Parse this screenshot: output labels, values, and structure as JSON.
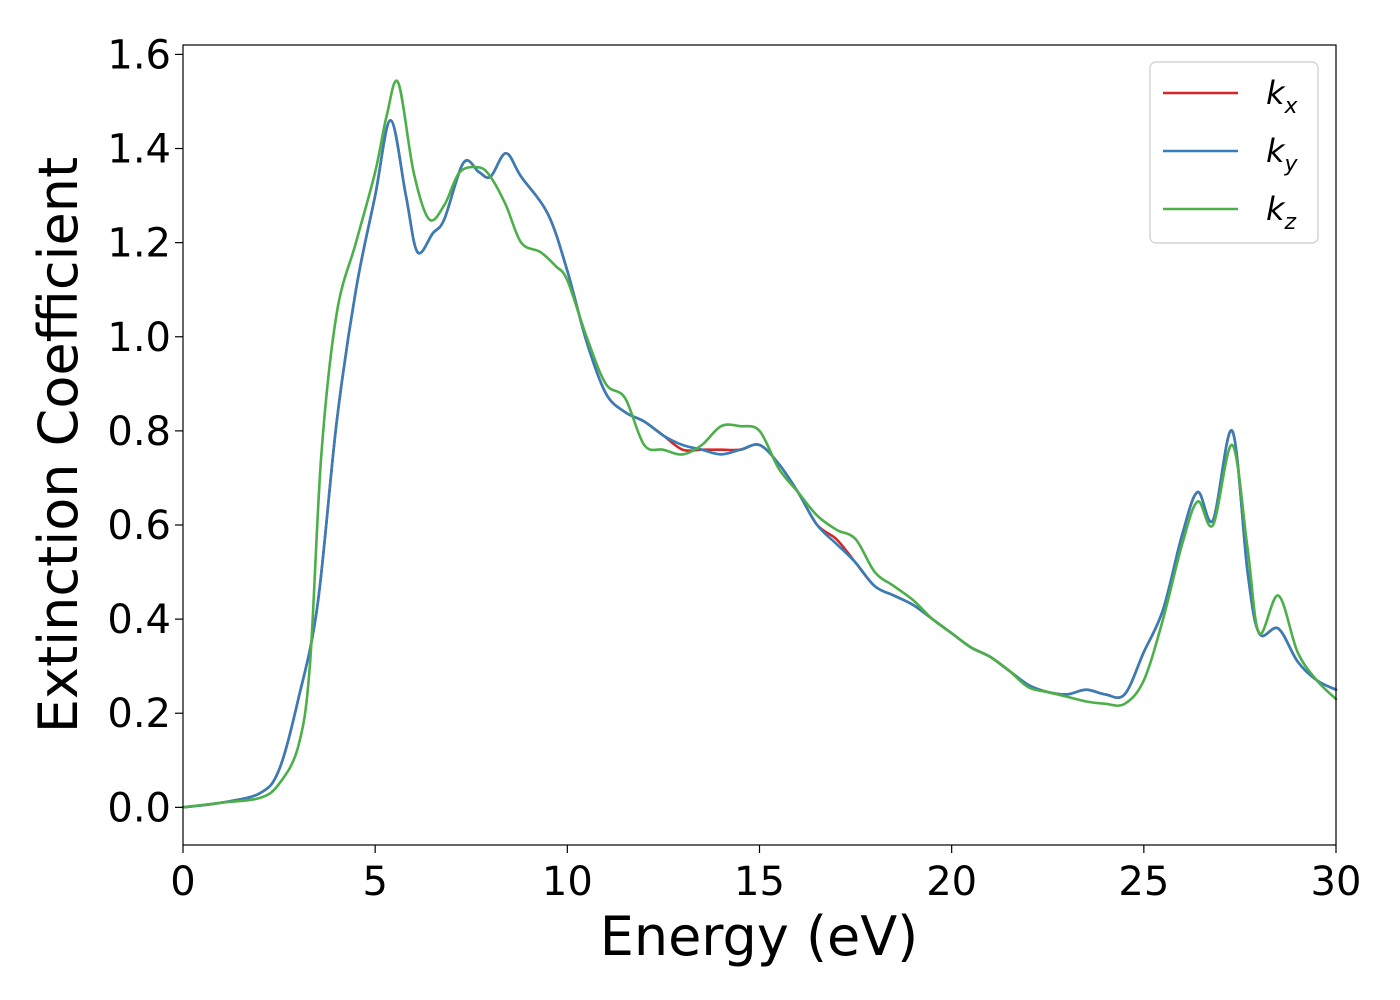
{
  "chart_data": {
    "type": "line",
    "xlabel": "Energy (eV)",
    "ylabel": "Extinction Coefficient",
    "xlim": [
      0,
      30
    ],
    "ylim": [
      -0.08,
      1.62
    ],
    "xticks": [
      0,
      5,
      10,
      15,
      20,
      25,
      30
    ],
    "yticks": [
      0.0,
      0.2,
      0.4,
      0.6,
      0.8,
      1.0,
      1.2,
      1.4,
      1.6
    ],
    "xtick_labels": [
      "0",
      "5",
      "10",
      "15",
      "20",
      "25",
      "30"
    ],
    "ytick_labels": [
      "0.0",
      "0.2",
      "0.4",
      "0.6",
      "0.8",
      "1.0",
      "1.2",
      "1.4",
      "1.6"
    ],
    "grid": false,
    "legend_position": "top-right",
    "series": [
      {
        "name": "k",
        "subscript": "x",
        "color": "#d62728",
        "x": [
          0,
          1,
          2,
          2.5,
          3,
          3.5,
          4,
          4.5,
          5,
          5.4,
          5.8,
          6.1,
          6.5,
          6.8,
          7.3,
          7.7,
          8,
          8.4,
          8.8,
          9.5,
          10,
          10.5,
          11,
          11.5,
          12,
          12.5,
          13,
          13.5,
          14,
          14.5,
          15,
          15.5,
          16,
          16.5,
          17,
          17.5,
          18,
          18.5,
          19,
          19.5,
          20,
          20.5,
          21,
          21.5,
          22,
          22.5,
          23,
          23.5,
          24,
          24.5,
          25,
          25.5,
          26,
          26.4,
          26.8,
          27.3,
          27.7,
          28,
          28.5,
          29,
          29.5,
          30
        ],
        "y": [
          0.0,
          0.01,
          0.03,
          0.08,
          0.23,
          0.43,
          0.82,
          1.1,
          1.3,
          1.46,
          1.3,
          1.18,
          1.22,
          1.25,
          1.37,
          1.35,
          1.34,
          1.39,
          1.34,
          1.26,
          1.14,
          0.99,
          0.88,
          0.84,
          0.82,
          0.79,
          0.76,
          0.76,
          0.76,
          0.76,
          0.77,
          0.73,
          0.67,
          0.6,
          0.57,
          0.52,
          0.47,
          0.45,
          0.43,
          0.4,
          0.37,
          0.34,
          0.32,
          0.29,
          0.26,
          0.245,
          0.24,
          0.25,
          0.24,
          0.24,
          0.33,
          0.42,
          0.58,
          0.67,
          0.61,
          0.8,
          0.5,
          0.37,
          0.38,
          0.31,
          0.27,
          0.25
        ]
      },
      {
        "name": "k",
        "subscript": "y",
        "color": "#377eb8",
        "x": [
          0,
          1,
          2,
          2.5,
          3,
          3.5,
          4,
          4.5,
          5,
          5.4,
          5.8,
          6.1,
          6.5,
          6.8,
          7.3,
          7.7,
          8,
          8.4,
          8.8,
          9.5,
          10,
          10.5,
          11,
          11.5,
          12,
          12.5,
          13,
          13.5,
          14,
          14.5,
          15,
          15.5,
          16,
          16.5,
          17,
          17.5,
          18,
          18.5,
          19,
          19.5,
          20,
          20.5,
          21,
          21.5,
          22,
          22.5,
          23,
          23.5,
          24,
          24.5,
          25,
          25.5,
          26,
          26.4,
          26.8,
          27.3,
          27.7,
          28,
          28.5,
          29,
          29.5,
          30
        ],
        "y": [
          0.0,
          0.01,
          0.03,
          0.08,
          0.23,
          0.43,
          0.82,
          1.1,
          1.3,
          1.46,
          1.3,
          1.18,
          1.22,
          1.25,
          1.37,
          1.35,
          1.34,
          1.39,
          1.34,
          1.26,
          1.14,
          0.99,
          0.88,
          0.84,
          0.82,
          0.79,
          0.77,
          0.76,
          0.75,
          0.76,
          0.77,
          0.73,
          0.67,
          0.6,
          0.56,
          0.52,
          0.47,
          0.45,
          0.43,
          0.4,
          0.37,
          0.34,
          0.32,
          0.29,
          0.26,
          0.245,
          0.24,
          0.25,
          0.24,
          0.24,
          0.33,
          0.42,
          0.58,
          0.67,
          0.61,
          0.8,
          0.5,
          0.37,
          0.38,
          0.31,
          0.27,
          0.25
        ]
      },
      {
        "name": "k",
        "subscript": "z",
        "color": "#4daf4a",
        "x": [
          0,
          1,
          2,
          2.5,
          3,
          3.3,
          3.6,
          4,
          4.5,
          5,
          5.3,
          5.6,
          6,
          6.4,
          6.8,
          7.2,
          7.7,
          8,
          8.4,
          8.8,
          9.3,
          9.7,
          10,
          10.5,
          11,
          11.5,
          12,
          12.5,
          13,
          13.5,
          14,
          14.5,
          15,
          15.5,
          16,
          16.5,
          17,
          17.5,
          18,
          18.5,
          19,
          19.5,
          20,
          20.5,
          21,
          21.5,
          22,
          22.5,
          23,
          23.5,
          24,
          24.5,
          25,
          25.5,
          26,
          26.4,
          26.8,
          27.3,
          27.7,
          28,
          28.5,
          29,
          29.5,
          30
        ],
        "y": [
          0.0,
          0.01,
          0.02,
          0.05,
          0.13,
          0.3,
          0.75,
          1.05,
          1.2,
          1.35,
          1.47,
          1.54,
          1.35,
          1.25,
          1.28,
          1.35,
          1.36,
          1.34,
          1.28,
          1.2,
          1.18,
          1.15,
          1.12,
          1.0,
          0.9,
          0.87,
          0.77,
          0.76,
          0.75,
          0.77,
          0.81,
          0.81,
          0.8,
          0.72,
          0.67,
          0.62,
          0.59,
          0.57,
          0.5,
          0.47,
          0.44,
          0.4,
          0.37,
          0.34,
          0.32,
          0.29,
          0.255,
          0.245,
          0.235,
          0.225,
          0.22,
          0.22,
          0.27,
          0.4,
          0.56,
          0.65,
          0.6,
          0.77,
          0.55,
          0.37,
          0.45,
          0.33,
          0.27,
          0.23
        ]
      }
    ]
  }
}
